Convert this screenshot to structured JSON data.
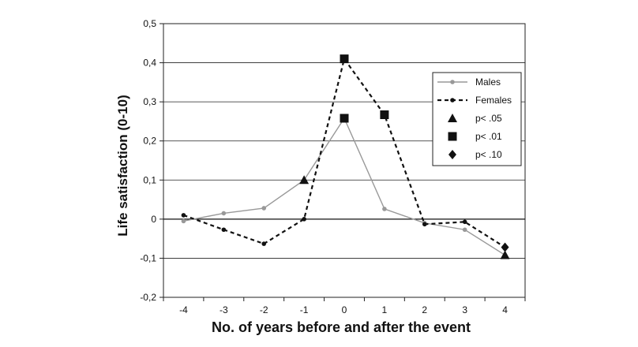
{
  "chart_data": {
    "type": "line",
    "title": "",
    "xlabel": "No. of years before and after the event",
    "ylabel": "Life satisfaction (0-10)",
    "x": [
      -4,
      -3,
      -2,
      -1,
      0,
      1,
      2,
      3,
      4
    ],
    "x_tick_labels": [
      "-4",
      "-3",
      "-2",
      "-1",
      "0",
      "1",
      "2",
      "3",
      "4"
    ],
    "y_ticks": [
      -0.2,
      -0.1,
      0,
      0.1,
      0.2,
      0.3,
      0.4,
      0.5
    ],
    "y_tick_labels": [
      "-0,2",
      "-0,1",
      "0",
      "0,1",
      "0,2",
      "0,3",
      "0,4",
      "0,5"
    ],
    "ylim": [
      -0.2,
      0.5
    ],
    "grid": true,
    "legend_position": "right",
    "series": [
      {
        "name": "Males",
        "style": "solid",
        "color": "#999999",
        "values": [
          -0.005,
          0.015,
          0.028,
          0.1,
          0.258,
          0.026,
          -0.01,
          -0.027,
          -0.092
        ],
        "markers": [
          "none",
          "none",
          "none",
          "triangle",
          "square",
          "none",
          "none",
          "none",
          "triangle"
        ]
      },
      {
        "name": "Females",
        "style": "dashed",
        "color": "#111111",
        "values": [
          0.01,
          -0.027,
          -0.063,
          0.0,
          0.41,
          0.267,
          -0.013,
          -0.007,
          -0.072
        ],
        "markers": [
          "none",
          "none",
          "none",
          "none",
          "square",
          "square",
          "none",
          "none",
          "diamond"
        ]
      }
    ],
    "legend": {
      "entries": [
        {
          "label": "Males",
          "kind": "line",
          "style": "solid",
          "color": "#999999"
        },
        {
          "label": "Females",
          "kind": "line",
          "style": "dashed",
          "color": "#111111"
        },
        {
          "label": "p< .05",
          "kind": "marker",
          "marker": "triangle"
        },
        {
          "label": "p< .01",
          "kind": "marker",
          "marker": "square"
        },
        {
          "label": "p< .10",
          "kind": "marker",
          "marker": "diamond"
        }
      ]
    }
  }
}
